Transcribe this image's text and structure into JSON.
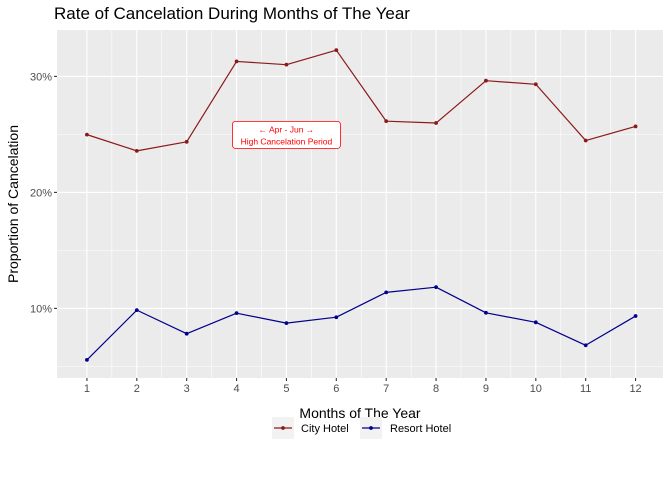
{
  "chart_data": {
    "type": "line",
    "title": "Rate of Cancelation During Months of The Year",
    "xlabel": "Months of The Year",
    "ylabel": "Proportion of Cancelation",
    "x": [
      1,
      2,
      3,
      4,
      5,
      6,
      7,
      8,
      9,
      10,
      11,
      12
    ],
    "x_tick_labels": [
      "1",
      "2",
      "3",
      "4",
      "5",
      "6",
      "7",
      "8",
      "9",
      "10",
      "11",
      "12"
    ],
    "xlim": [
      0.4,
      12.55
    ],
    "ylim": [
      0.04,
      0.34
    ],
    "y_ticks": [
      0.1,
      0.2,
      0.3
    ],
    "y_tick_labels": [
      "10%",
      "20%",
      "30%"
    ],
    "grid": true,
    "legend_position": "bottom",
    "series": [
      {
        "name": "City Hotel",
        "color": "#8b1a1a",
        "values": [
          0.2498,
          0.2358,
          0.2436,
          0.3129,
          0.3101,
          0.3226,
          0.2614,
          0.2598,
          0.2963,
          0.2932,
          0.2447,
          0.2569
        ]
      },
      {
        "name": "Resort Hotel",
        "color": "#00008b",
        "values": [
          0.0556,
          0.0985,
          0.0782,
          0.0959,
          0.0873,
          0.0924,
          0.1138,
          0.1183,
          0.0962,
          0.088,
          0.0682,
          0.0934
        ]
      }
    ],
    "annotation": {
      "line1": "←  Apr - Jun  →",
      "line2": "High Cancelation Period",
      "color": "#ff0000",
      "x": 5,
      "y": 0.25
    }
  }
}
